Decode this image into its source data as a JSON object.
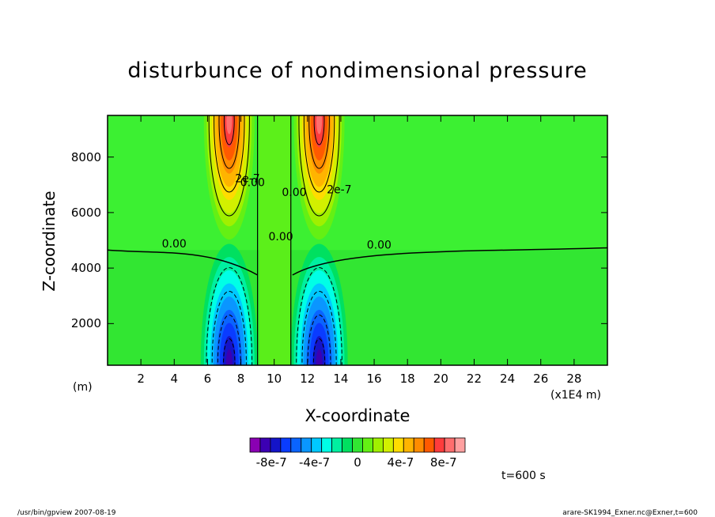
{
  "chart_data": {
    "type": "contour",
    "title": "disturbunce of nondimensional pressure",
    "xlabel": "X-coordinate",
    "ylabel": "Z-coordinate",
    "x_unit_left": "(m)",
    "x_unit_right": "(x1E4 m)",
    "xlim": [
      0,
      30
    ],
    "ylim": [
      500,
      9500
    ],
    "x_ticks": [
      2,
      4,
      6,
      8,
      10,
      12,
      14,
      16,
      18,
      20,
      22,
      24,
      26,
      28
    ],
    "y_ticks": [
      2000,
      4000,
      6000,
      8000
    ],
    "contour_labels": [
      {
        "text": "0.00",
        "x": 4.0,
        "z": 4750
      },
      {
        "text": "0.00",
        "x": 16.3,
        "z": 4700
      },
      {
        "text": "0.00",
        "x": 8.7,
        "z": 6950
      },
      {
        "text": "0.00",
        "x": 10.4,
        "z": 5000
      },
      {
        "text": "0.00",
        "x": 11.2,
        "z": 6600
      },
      {
        "text": "2e-7",
        "x": 13.9,
        "z": 6700
      },
      {
        "text": "2e-7",
        "x": 8.4,
        "z": 7100
      }
    ],
    "features": {
      "positive_maxima": [
        {
          "x": 7.3,
          "z": 8700
        },
        {
          "x": 12.7,
          "z": 8700
        }
      ],
      "negative_minima": [
        {
          "x": 7.3,
          "z": 1200
        },
        {
          "x": 12.7,
          "z": 1200
        }
      ],
      "zero_line_height_far_field": 4650
    },
    "colorbar": {
      "levels": [
        -1e-06,
        -9e-07,
        -8e-07,
        -7e-07,
        -6e-07,
        -5e-07,
        -4e-07,
        -3e-07,
        -2e-07,
        -1e-07,
        0,
        1e-07,
        2e-07,
        3e-07,
        4e-07,
        5e-07,
        6e-07,
        7e-07,
        8e-07,
        9e-07,
        1e-06
      ],
      "colors": [
        "#8a00b3",
        "#3c00b3",
        "#1414c8",
        "#0a3cff",
        "#0a64ff",
        "#0a96ff",
        "#00c8ff",
        "#00ffe6",
        "#00f0a0",
        "#00e060",
        "#32e632",
        "#64f014",
        "#a0f000",
        "#d2f000",
        "#ffdc00",
        "#ffb400",
        "#ff8c00",
        "#ff5a00",
        "#ff3c3c",
        "#ff6e6e",
        "#ffa0a0"
      ],
      "labels": [
        "-8e-7",
        "-4e-7",
        "0",
        "4e-7",
        "8e-7"
      ]
    },
    "time_label": "t=600 s"
  },
  "footer": {
    "left": "/usr/bin/gpview 2007-08-19",
    "right": "arare-SK1994_Exner.nc@Exner,t=600"
  }
}
